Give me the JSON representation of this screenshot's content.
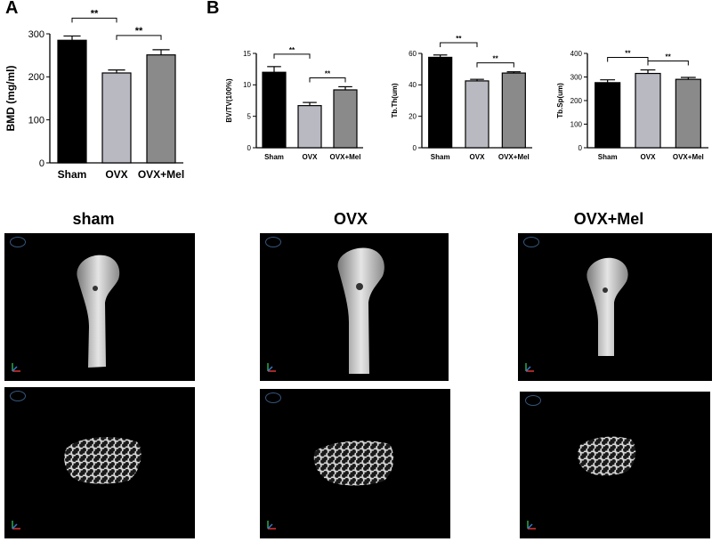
{
  "panel_labels": {
    "a": "A",
    "b": "B"
  },
  "chart_data": [
    {
      "type": "bar",
      "categories": [
        "Sham",
        "OVX",
        "OVX+Mel"
      ],
      "values": [
        285,
        209,
        251
      ],
      "errors": [
        10,
        7,
        12
      ],
      "ylabel": "BMD (mg/ml)",
      "ylim": [
        0,
        300
      ],
      "yticks": [
        0,
        100,
        200,
        300
      ],
      "significance": [
        {
          "from": 0,
          "to": 1,
          "label": "**"
        },
        {
          "from": 1,
          "to": 2,
          "label": "**"
        }
      ],
      "bar_colors": [
        "#000000",
        "#b9b9c2",
        "#8a8a8a"
      ]
    },
    {
      "type": "bar",
      "categories": [
        "Sham",
        "OVX",
        "OVX+Mel"
      ],
      "values": [
        12.0,
        6.7,
        9.2
      ],
      "errors": [
        0.9,
        0.5,
        0.5
      ],
      "ylabel": "BV/TV(100%)",
      "ylim": [
        0,
        15
      ],
      "yticks": [
        0,
        5,
        10,
        15
      ],
      "significance": [
        {
          "from": 0,
          "to": 1,
          "label": "**"
        },
        {
          "from": 1,
          "to": 2,
          "label": "**"
        }
      ],
      "bar_colors": [
        "#000000",
        "#b9b9c2",
        "#8a8a8a"
      ]
    },
    {
      "type": "bar",
      "categories": [
        "Sham",
        "OVX",
        "OVX+Mel"
      ],
      "values": [
        57.5,
        42.5,
        47.5
      ],
      "errors": [
        1.5,
        1.0,
        0.8
      ],
      "ylabel": "Tb.Th(um)",
      "ylim": [
        0,
        60
      ],
      "yticks": [
        0,
        20,
        40,
        60
      ],
      "significance": [
        {
          "from": 0,
          "to": 1,
          "label": "**"
        },
        {
          "from": 1,
          "to": 2,
          "label": "**"
        }
      ],
      "bar_colors": [
        "#000000",
        "#b9b9c2",
        "#8a8a8a"
      ]
    },
    {
      "type": "bar",
      "categories": [
        "Sham",
        "OVX",
        "OVX+Mel"
      ],
      "values": [
        276,
        315,
        290
      ],
      "errors": [
        12,
        15,
        8
      ],
      "ylabel": "Tb.Sp(um)",
      "ylim": [
        0,
        400
      ],
      "yticks": [
        0,
        100,
        200,
        300,
        400
      ],
      "significance": [
        {
          "from": 0,
          "to": 1,
          "label": "**"
        },
        {
          "from": 1,
          "to": 2,
          "label": "**"
        }
      ],
      "bar_colors": [
        "#000000",
        "#b9b9c2",
        "#8a8a8a"
      ]
    }
  ],
  "images": {
    "column_titles": [
      "sham",
      "OVX",
      "OVX+Mel"
    ],
    "rows": [
      [
        "femur-3d-scan",
        "femur-3d-scan",
        "femur-3d-scan"
      ],
      [
        "trabecular-3d-scan",
        "trabecular-3d-scan",
        "trabecular-3d-scan"
      ]
    ]
  }
}
